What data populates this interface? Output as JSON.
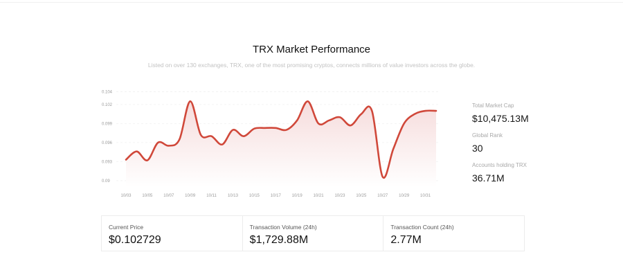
{
  "header": {
    "title": "TRX Market Performance",
    "subtitle": "Listed on over 130 exchanges, TRX, one of the most promising cryptos, connects millions of value investors across the globe."
  },
  "side_stats": [
    {
      "label": "Total Market Cap",
      "value": "$10,475.13M"
    },
    {
      "label": "Global Rank",
      "value": "30"
    },
    {
      "label": "Accounts holding TRX",
      "value": "36.71M"
    }
  ],
  "cards": [
    {
      "label": "Current Price",
      "value": "$0.102729"
    },
    {
      "label": "Transaction Volume (24h)",
      "value": "$1,729.88M"
    },
    {
      "label": "Transaction Count (24h)",
      "value": "2.77M"
    }
  ],
  "colors": {
    "line": "#d0483a",
    "area_top": "#f6dcdc",
    "area_bottom": "#ffffff"
  },
  "chart_data": {
    "type": "area",
    "title": "",
    "xlabel": "",
    "ylabel": "",
    "ylim": [
      0.089,
      0.1045
    ],
    "x_tick_labels": [
      "10/03",
      "10/05",
      "10/07",
      "10/09",
      "10/11",
      "10/13",
      "10/15",
      "10/17",
      "10/19",
      "10/21",
      "10/23",
      "10/25",
      "10/27",
      "10/29",
      "10/31"
    ],
    "y_tick_labels": [
      "0.104",
      "0.102",
      "0.099",
      "0.096",
      "0.093",
      "0.09"
    ],
    "y_tick_values": [
      0.104,
      0.102,
      0.099,
      0.096,
      0.093,
      0.09
    ],
    "grid": true,
    "x": [
      3,
      4,
      5,
      6,
      7,
      8,
      9,
      10,
      11,
      12,
      13,
      14,
      15,
      16,
      17,
      18,
      19,
      20,
      21,
      22,
      23,
      24,
      25,
      26,
      27,
      28,
      29,
      30,
      31,
      32
    ],
    "values": [
      0.0933,
      0.0946,
      0.0932,
      0.096,
      0.0955,
      0.0965,
      0.1025,
      0.0972,
      0.097,
      0.0957,
      0.098,
      0.097,
      0.0982,
      0.0983,
      0.0983,
      0.098,
      0.0995,
      0.1025,
      0.099,
      0.0995,
      0.1,
      0.0987,
      0.1005,
      0.101,
      0.0906,
      0.095,
      0.099,
      0.1005,
      0.101,
      0.101
    ]
  }
}
